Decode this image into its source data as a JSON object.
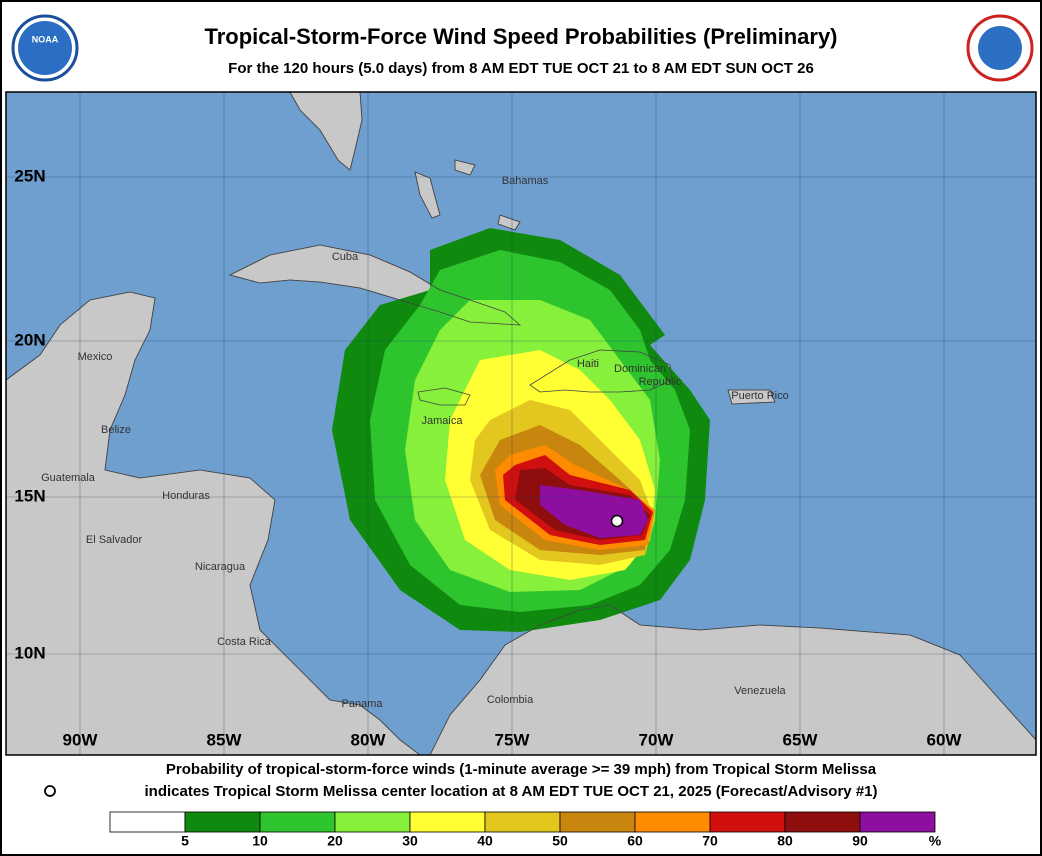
{
  "header": {
    "title": "Tropical-Storm-Force Wind Speed Probabilities (Preliminary)",
    "subtitle": "For the 120 hours (5.0 days) from 8 AM EDT TUE OCT 21 to 8 AM EDT SUN OCT 26",
    "logo": "NOAA"
  },
  "map": {
    "lat_labels": [
      "25N",
      "20N",
      "15N",
      "10N"
    ],
    "lon_labels": [
      "90W",
      "85W",
      "80W",
      "75W",
      "70W",
      "65W",
      "60W"
    ],
    "places": [
      "Bahamas",
      "Cuba",
      "Mexico",
      "Haiti",
      "Dominican",
      "Republic",
      "Puerto Rico",
      "Jamaica",
      "Belize",
      "Guatemala",
      "Honduras",
      "El Salvador",
      "Nicaragua",
      "Costa Rica",
      "Panama",
      "Colombia",
      "Venezuela"
    ]
  },
  "footer": {
    "line1": "Probability of tropical-storm-force winds (1-minute average >= 39 mph) from Tropical Storm Melissa",
    "line2": "indicates Tropical Storm Melissa center location at 8 AM EDT TUE OCT 21, 2025 (Forecast/Advisory #1)"
  },
  "legend": {
    "colors": [
      "#ffffff",
      "#0f8a0f",
      "#2ec42e",
      "#86f03a",
      "#ffff33",
      "#e3c71e",
      "#c9860f",
      "#ff8c00",
      "#d10f0f",
      "#8e0d0d",
      "#8e0ea0"
    ],
    "ticks": [
      5,
      10,
      20,
      30,
      40,
      50,
      60,
      70,
      80,
      90
    ],
    "unit": "%"
  }
}
